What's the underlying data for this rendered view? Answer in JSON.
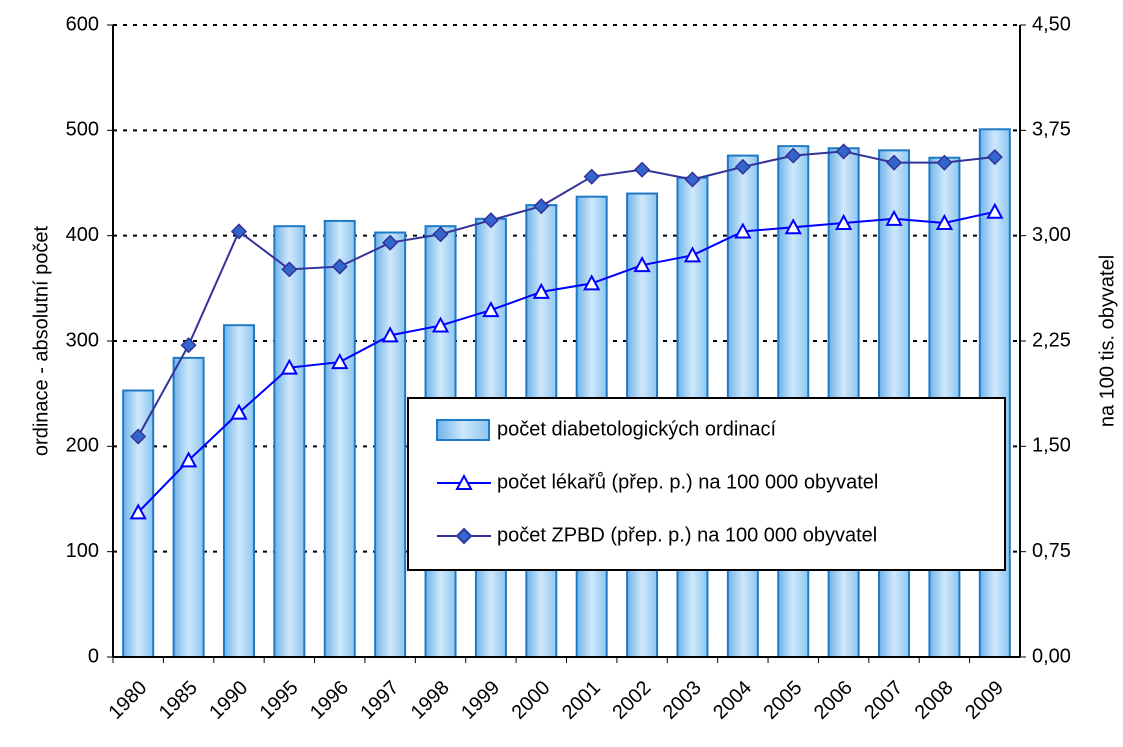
{
  "chart_data": {
    "type": "bar",
    "categories": [
      "1980",
      "1985",
      "1990",
      "1995",
      "1996",
      "1997",
      "1998",
      "1999",
      "2000",
      "2001",
      "2002",
      "2003",
      "2004",
      "2005",
      "2006",
      "2007",
      "2008",
      "2009"
    ],
    "series": [
      {
        "name": "počet diabetologických ordinací",
        "type": "bar",
        "color": "#a8d4f4",
        "values": [
          253,
          284,
          315,
          409,
          414,
          403,
          409,
          416,
          429,
          437,
          440,
          455,
          476,
          485,
          483,
          481,
          474,
          501
        ]
      },
      {
        "name": "počet lékařů (přep. p.) na 100 000 obyvatel",
        "type": "line",
        "axis": "y2",
        "marker": "triangle",
        "color": "#0000ff",
        "values": [
          1.03,
          1.4,
          1.74,
          2.06,
          2.1,
          2.29,
          2.36,
          2.47,
          2.6,
          2.66,
          2.79,
          2.86,
          3.03,
          3.06,
          3.09,
          3.12,
          3.09,
          3.17
        ]
      },
      {
        "name": "počet ZPBD (přep. p.) na 100 000 obyvatel",
        "type": "line",
        "axis": "y2",
        "marker": "diamond",
        "color": "#333399",
        "values": [
          1.57,
          2.22,
          3.03,
          2.76,
          2.78,
          2.95,
          3.01,
          3.11,
          3.21,
          3.42,
          3.47,
          3.4,
          3.49,
          3.57,
          3.6,
          3.52,
          3.52,
          3.56
        ]
      }
    ],
    "ylabel": "ordinace - absolutní počet",
    "y2label": "na 100 tis. obyvatel",
    "ylim": [
      0,
      600
    ],
    "yticks": [
      0,
      100,
      200,
      300,
      400,
      500,
      600
    ],
    "y2lim": [
      0,
      4.5
    ],
    "y2ticks": [
      {
        "value": 0,
        "label": "0,00"
      },
      {
        "value": 0.75,
        "label": "0,75"
      },
      {
        "value": 1.5,
        "label": "1,50"
      },
      {
        "value": 2.25,
        "label": "2,25"
      },
      {
        "value": 3,
        "label": "3,00"
      },
      {
        "value": 3.75,
        "label": "3,75"
      },
      {
        "value": 4.5,
        "label": "4,50"
      }
    ],
    "grid": true
  }
}
